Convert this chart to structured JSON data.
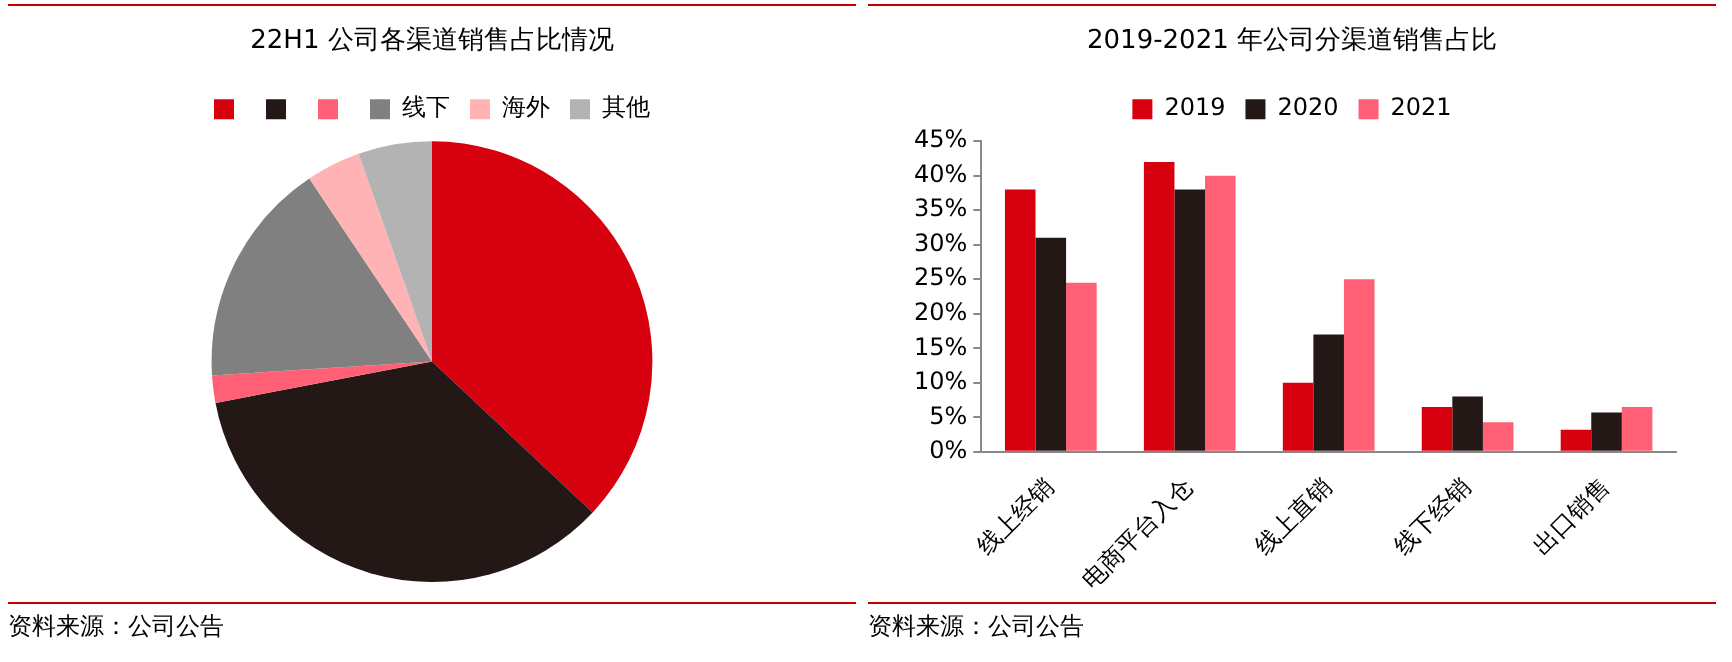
{
  "chart_data": [
    {
      "type": "pie",
      "title": "22H1 公司各渠道销售占比情况",
      "categories": [
        null,
        null,
        null,
        "线下",
        "海外",
        "其他"
      ],
      "values": [
        37,
        35,
        2,
        16.6,
        4,
        5.4
      ],
      "colors": [
        "#d7000f",
        "#231815",
        "#ff6076",
        "#808080",
        "#ffb3b5",
        "#b3b3b3"
      ],
      "legend": "top",
      "annotations": [
        "资料来源：公司公告"
      ]
    },
    {
      "type": "bar",
      "title": "2019-2021 年公司分渠道销售占比",
      "categories": [
        "线上经销",
        "电商平台入仓",
        "线上直销",
        "线下经销",
        "出口销售"
      ],
      "series": [
        {
          "name": "2019",
          "color": "#d7000f",
          "values": [
            38,
            42,
            10,
            6.5,
            3.2
          ]
        },
        {
          "name": "2020",
          "color": "#231815",
          "values": [
            31,
            38,
            17,
            8,
            5.7
          ]
        },
        {
          "name": "2021",
          "color": "#ff6076",
          "values": [
            24.5,
            40,
            25,
            4.3,
            6.5
          ]
        }
      ],
      "ylim": [
        0,
        45
      ],
      "yticks": [
        {
          "value": 0,
          "label": "0%"
        },
        {
          "value": 5,
          "label": "5%"
        },
        {
          "value": 10,
          "label": "10%"
        },
        {
          "value": 15,
          "label": "15%"
        },
        {
          "value": 20,
          "label": "20%"
        },
        {
          "value": 25,
          "label": "25%"
        },
        {
          "value": 30,
          "label": "30%"
        },
        {
          "value": 35,
          "label": "35%"
        },
        {
          "value": 40,
          "label": "40%"
        },
        {
          "value": 45,
          "label": "45%"
        }
      ],
      "grid": false,
      "legend": "top",
      "annotations": [
        "资料来源：公司公告"
      ]
    }
  ]
}
